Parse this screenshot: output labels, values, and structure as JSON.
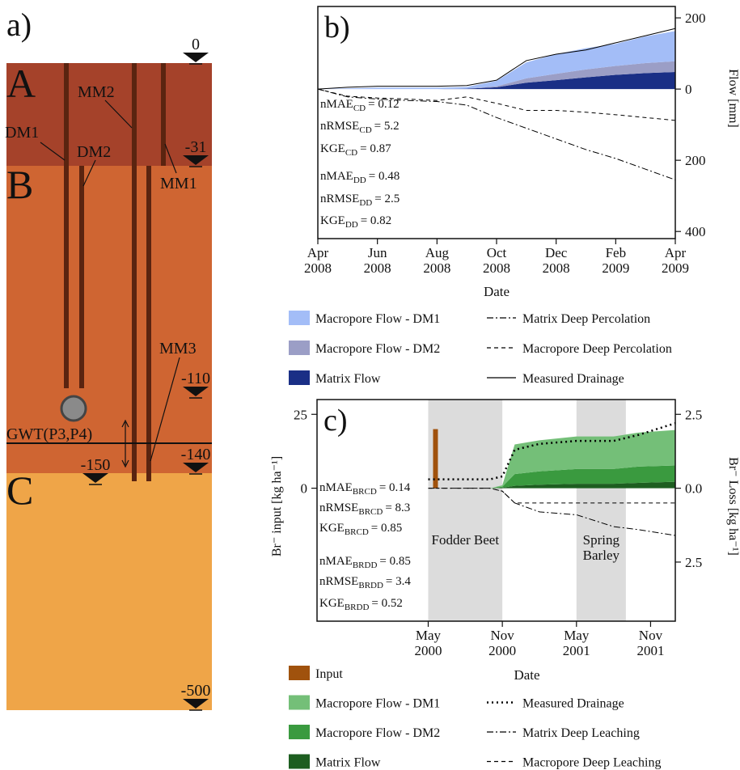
{
  "diagram": {
    "panel_label": "a)",
    "layers": [
      {
        "label": "A"
      },
      {
        "label": "B"
      },
      {
        "label": "C"
      }
    ],
    "tubes": [
      {
        "label": "DM1"
      },
      {
        "label": "DM2"
      },
      {
        "label": "MM1"
      },
      {
        "label": "MM2"
      },
      {
        "label": "MM3"
      }
    ],
    "depths": [
      0,
      -31,
      -110,
      -140,
      -150,
      -500
    ],
    "groundwater": "GWT(P3,P4)"
  },
  "chart_data": [
    {
      "type": "area",
      "panel_label": "b)",
      "xlabel": "Date",
      "ylabel": "Flow [mm]",
      "x": [
        "2008-04",
        "2008-05",
        "2008-06",
        "2008-07",
        "2008-08",
        "2008-09",
        "2008-10",
        "2008-11",
        "2008-12",
        "2009-01",
        "2009-02",
        "2009-03",
        "2009-04"
      ],
      "xlim": [
        "2008-04",
        "2009-04"
      ],
      "xticks": [
        {
          "value": "2008-04",
          "label": "Apr 2008"
        },
        {
          "value": "2008-06",
          "label": "Jun 2008"
        },
        {
          "value": "2008-08",
          "label": "Aug 2008"
        },
        {
          "value": "2008-10",
          "label": "Oct 2008"
        },
        {
          "value": "2008-12",
          "label": "Dec 2008"
        },
        {
          "value": "2009-02",
          "label": "Feb 2009"
        },
        {
          "value": "2009-04",
          "label": "Apr 2009"
        }
      ],
      "ylim": [
        -420,
        232
      ],
      "yticks": [
        {
          "value": -400,
          "label": "400"
        },
        {
          "value": -200,
          "label": "200"
        },
        0,
        200
      ],
      "series": [
        {
          "name": "Macropore Flow - DM1",
          "color": "#a3bdf7",
          "style": "area",
          "values": [
            0,
            2,
            4,
            4,
            4,
            5,
            15,
            45,
            55,
            60,
            62,
            75,
            85
          ]
        },
        {
          "name": "Macropore Flow - DM2",
          "color": "#9b9ec6",
          "style": "area",
          "values": [
            0,
            0,
            0,
            0,
            0,
            0,
            3,
            12,
            18,
            22,
            25,
            28,
            30
          ]
        },
        {
          "name": "Matrix Flow",
          "color": "#1a2f86",
          "style": "area",
          "values": [
            0,
            0,
            0,
            0,
            0,
            1,
            5,
            18,
            25,
            33,
            40,
            45,
            48
          ]
        },
        {
          "name": "Matrix Deep Percolation",
          "color": "#000000",
          "style": "dashdot",
          "values": [
            0,
            -22,
            -28,
            -32,
            -35,
            -45,
            -80,
            -110,
            -140,
            -170,
            -195,
            -225,
            -255
          ]
        },
        {
          "name": "Macropore Deep Percolation",
          "color": "#000000",
          "style": "dashed",
          "values": [
            0,
            -20,
            -25,
            -28,
            -32,
            -22,
            -40,
            -60,
            -60,
            -65,
            -72,
            -80,
            -88
          ]
        },
        {
          "name": "Measured Drainage",
          "color": "#000000",
          "style": "solid",
          "values": [
            0,
            5,
            8,
            8,
            8,
            10,
            25,
            80,
            98,
            110,
            130,
            150,
            170
          ]
        }
      ],
      "stats": [
        {
          "metric": "nMAE",
          "sub": "CD",
          "value": "= 0.12"
        },
        {
          "metric": "nRMSE",
          "sub": "CD",
          "value": "= 5.2"
        },
        {
          "metric": "KGE",
          "sub": "CD",
          "value": "= 0.87"
        },
        {
          "metric": "nMAE",
          "sub": "DD",
          "value": "= 0.48"
        },
        {
          "metric": "nRMSE",
          "sub": "DD",
          "value": "= 2.5"
        },
        {
          "metric": "KGE",
          "sub": "DD",
          "value": "= 0.82"
        }
      ]
    },
    {
      "type": "area",
      "panel_label": "c)",
      "xlabel": "Date",
      "ylabel": "Br⁻ input [kg ha⁻¹]",
      "y2label": "Br⁻ Loss [kg ha⁻¹]",
      "x": [
        "2000-05",
        "2000-10",
        "2000-11",
        "2000-12",
        "2001-02",
        "2001-05",
        "2001-08",
        "2001-10",
        "2002-01"
      ],
      "xlim": [
        "1999-08",
        "2002-01"
      ],
      "xticks": [
        {
          "value": "2000-05",
          "label": "May 2000"
        },
        {
          "value": "2000-11",
          "label": "Nov 2000"
        },
        {
          "value": "2001-05",
          "label": "May 2001"
        },
        {
          "value": "2001-11",
          "label": "Nov 2001"
        }
      ],
      "ylim": [
        -45,
        30
      ],
      "yticks": [
        0,
        25
      ],
      "y2lim": [
        -4.5,
        3.0
      ],
      "y2ticks": [
        {
          "value": -2.5,
          "label": "2.5"
        },
        {
          "value": 0,
          "label": "0.0"
        },
        2.5
      ],
      "spans": [
        {
          "label": "Fodder Beet",
          "start": "2000-05",
          "end": "2000-11",
          "color": "#dcdcdc"
        },
        {
          "label": "Spring Barley",
          "start": "2001-05",
          "end": "2001-09",
          "color": "#dcdcdc"
        }
      ],
      "series": [
        {
          "name": "Input",
          "color": "#a0520d",
          "style": "bar",
          "values": [
            20,
            null,
            null,
            null,
            null,
            null,
            null,
            null,
            null
          ]
        },
        {
          "name": "Macropore Flow - DM1",
          "color": "#74bf78",
          "style": "area",
          "axis": "y2",
          "values": [
            0,
            0,
            0.05,
            1.0,
            1.05,
            1.1,
            1.1,
            1.15,
            1.2
          ]
        },
        {
          "name": "Macropore Flow - DM2",
          "color": "#3a9a3f",
          "style": "area",
          "axis": "y2",
          "values": [
            0,
            0,
            0.03,
            0.4,
            0.45,
            0.5,
            0.5,
            0.55,
            0.55
          ]
        },
        {
          "name": "Matrix Flow",
          "color": "#1d5e20",
          "style": "area",
          "axis": "y2",
          "values": [
            0,
            0,
            0.02,
            0.08,
            0.12,
            0.15,
            0.15,
            0.18,
            0.22
          ]
        },
        {
          "name": "Measured Drainage",
          "color": "#000000",
          "style": "dotted",
          "axis": "y2",
          "values": [
            0.3,
            0.3,
            0.4,
            1.3,
            1.5,
            1.6,
            1.6,
            1.8,
            2.2
          ]
        },
        {
          "name": "Matrix Deep Leaching",
          "color": "#000000",
          "style": "dashdot",
          "axis": "y2",
          "values": [
            0,
            0,
            -0.1,
            -0.5,
            -0.8,
            -0.9,
            -1.3,
            -1.4,
            -1.6
          ]
        },
        {
          "name": "Macropore Deep Leaching",
          "color": "#000000",
          "style": "dashed",
          "axis": "y2",
          "values": [
            0,
            0,
            -0.1,
            -0.5,
            -0.5,
            -0.5,
            -0.5,
            -0.5,
            -0.5
          ]
        }
      ],
      "stats": [
        {
          "metric": "nMAE",
          "sub": "BRCD",
          "value": "= 0.14"
        },
        {
          "metric": "nRMSE",
          "sub": "BRCD",
          "value": "= 8.3"
        },
        {
          "metric": "KGE",
          "sub": "BRCD",
          "value": "= 0.85"
        },
        {
          "metric": "nMAE",
          "sub": "BRDD",
          "value": "= 0.85"
        },
        {
          "metric": "nRMSE",
          "sub": "BRDD",
          "value": "= 3.4"
        },
        {
          "metric": "KGE",
          "sub": "BRDD",
          "value": "= 0.52"
        }
      ]
    }
  ]
}
